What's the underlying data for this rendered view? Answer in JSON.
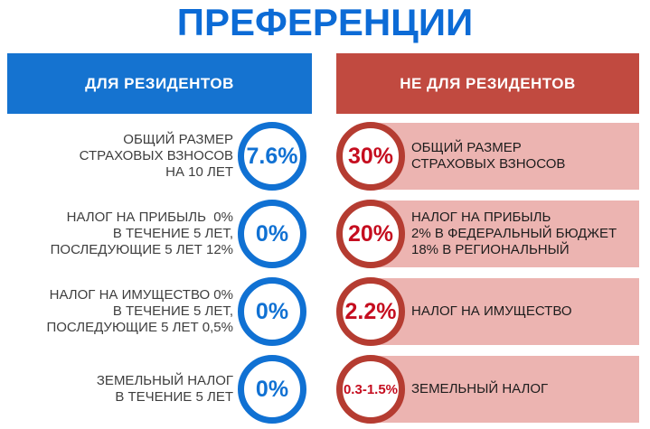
{
  "title": "ПРЕФЕРЕНЦИИ",
  "columns": {
    "residents": "ДЛЯ РЕЗИДЕНТОВ",
    "non_residents": "НЕ ДЛЯ РЕЗИДЕНТОВ"
  },
  "rows": [
    {
      "left": {
        "lines": [
          "ОБЩИЙ РАЗМЕР",
          "СТРАХОВЫХ ВЗНОСОВ",
          "НА 10 ЛЕТ"
        ],
        "value": "7.6%"
      },
      "right": {
        "value": "30%",
        "lines": [
          "ОБЩИЙ РАЗМЕР",
          "СТРАХОВЫХ ВЗНОСОВ"
        ]
      }
    },
    {
      "left": {
        "lines": [
          "НАЛОГ НА ПРИБЫЛЬ  0%",
          "В ТЕЧЕНИЕ 5 ЛЕТ,",
          "ПОСЛЕДУЮЩИЕ 5 ЛЕТ 12%"
        ],
        "value": "0%"
      },
      "right": {
        "value": "20%",
        "lines": [
          "НАЛОГ НА ПРИБЫЛЬ",
          "2% В ФЕДЕРАЛЬНЫЙ БЮДЖЕТ",
          "18% В РЕГИОНАЛЬНЫЙ"
        ]
      }
    },
    {
      "left": {
        "lines": [
          "НАЛОГ НА ИМУЩЕСТВО 0%",
          "В ТЕЧЕНИЕ 5 ЛЕТ,",
          "ПОСЛЕДУЮЩИЕ 5 ЛЕТ 0,5%"
        ],
        "value": "0%"
      },
      "right": {
        "value": "2.2%",
        "lines": [
          "НАЛОГ НА ИМУЩЕСТВО"
        ]
      }
    },
    {
      "left": {
        "lines": [
          "ЗЕМЕЛЬНЫЙ НАЛОГ",
          "В ТЕЧЕНИЕ 5 ЛЕТ"
        ],
        "value": "0%"
      },
      "right": {
        "value": "0.3-1.5%",
        "lines": [
          "ЗЕМЕЛЬНЫЙ НАЛОГ"
        ]
      }
    }
  ],
  "colors": {
    "title_blue": "#0c6bd6",
    "resident_header_blue": "#1573d0",
    "circle_blue": "#1071d3",
    "non_resident_header_red": "#c14a40",
    "band_pink": "#ecb4b1",
    "circle_ring_red": "#b53c31",
    "value_red": "#c50d1f"
  }
}
